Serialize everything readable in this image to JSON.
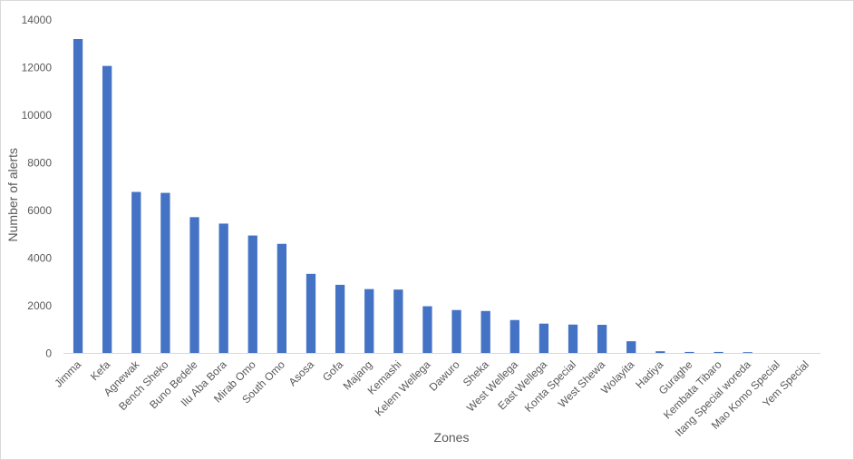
{
  "chart_data": {
    "type": "bar",
    "xlabel": "Zones",
    "ylabel": "Number of alerts",
    "ylim": [
      0,
      14000
    ],
    "ytick_step": 2000,
    "yticks": [
      "0",
      "2000",
      "4000",
      "6000",
      "8000",
      "10000",
      "12000",
      "14000"
    ],
    "grid": false,
    "bar_color": "#4472C4",
    "categories": [
      "Jimma",
      "Kefa",
      "Agnewak",
      "Bench Sheko",
      "Buno Bedele",
      "Ilu Aba Bora",
      "Mirab Omo",
      "South Omo",
      "Asosa",
      "Gofa",
      "Majang",
      "Kemashi",
      "Kelem Wellega",
      "Dawuro",
      "Sheka",
      "West Wellega",
      "East Wellega",
      "Konta Special",
      "West Shewa",
      "Wolayita",
      "Hadiya",
      "Guraghe",
      "Kembata Tibaro",
      "Itang Special woreda",
      "Mao Komo Special",
      "Yem Special"
    ],
    "values": [
      13200,
      12070,
      6780,
      6740,
      5720,
      5450,
      4950,
      4600,
      3340,
      2880,
      2700,
      2680,
      1980,
      1820,
      1780,
      1400,
      1250,
      1210,
      1200,
      510,
      90,
      60,
      60,
      50,
      0,
      0
    ]
  }
}
